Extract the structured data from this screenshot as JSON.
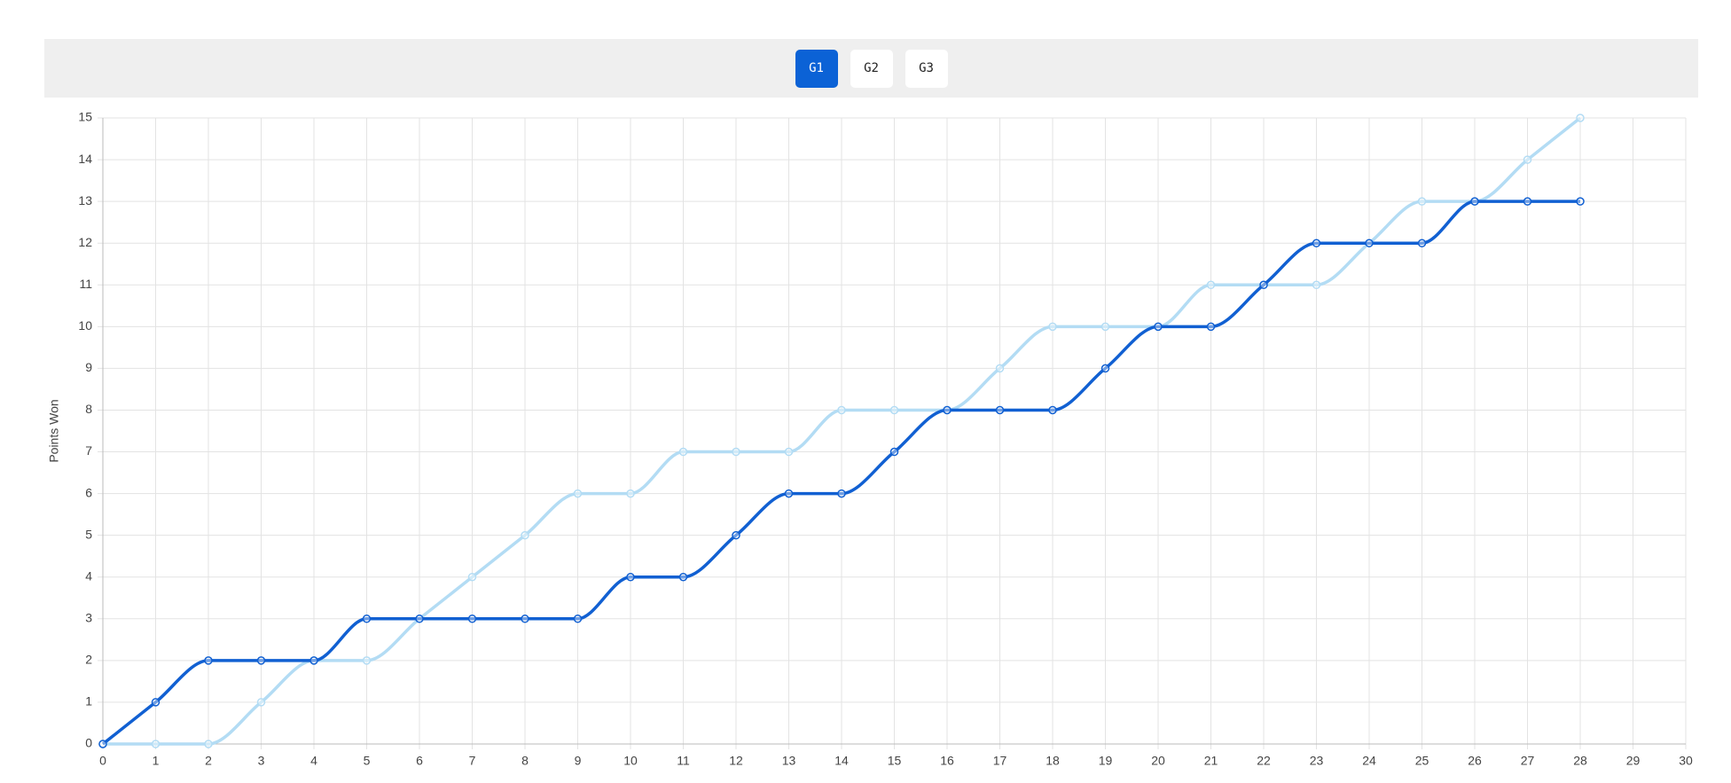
{
  "buttons": [
    "G1",
    "G2",
    "G3"
  ],
  "active_button": 0,
  "chart_data": {
    "type": "line",
    "y_label": "Points Won",
    "x": [
      0,
      1,
      2,
      3,
      4,
      5,
      6,
      7,
      8,
      9,
      10,
      11,
      12,
      13,
      14,
      15,
      16,
      17,
      18,
      19,
      20,
      21,
      22,
      23,
      24,
      25,
      26,
      27,
      28
    ],
    "series": [
      {
        "color": "#b3dcf4",
        "values": [
          0,
          0,
          0,
          1,
          2,
          2,
          3,
          4,
          5,
          6,
          6,
          7,
          7,
          7,
          8,
          8,
          8,
          9,
          10,
          10,
          10,
          11,
          11,
          11,
          12,
          13,
          13,
          14,
          15
        ]
      },
      {
        "color": "#1160d2",
        "values": [
          0,
          1,
          2,
          2,
          2,
          3,
          3,
          3,
          3,
          3,
          4,
          4,
          5,
          6,
          6,
          7,
          8,
          8,
          8,
          9,
          10,
          10,
          11,
          12,
          12,
          12,
          13,
          13,
          13
        ]
      }
    ],
    "xlim": [
      0,
      30
    ],
    "xticks": [
      0,
      1,
      2,
      3,
      4,
      5,
      6,
      7,
      8,
      9,
      10,
      11,
      12,
      13,
      14,
      15,
      16,
      17,
      18,
      19,
      20,
      21,
      22,
      23,
      24,
      25,
      26,
      27,
      28,
      29,
      30
    ],
    "ylim": [
      0,
      15
    ],
    "yticks": [
      0,
      1,
      2,
      3,
      4,
      5,
      6,
      7,
      8,
      9,
      10,
      11,
      12,
      13,
      14,
      15
    ],
    "grid": true,
    "smooth": true
  }
}
